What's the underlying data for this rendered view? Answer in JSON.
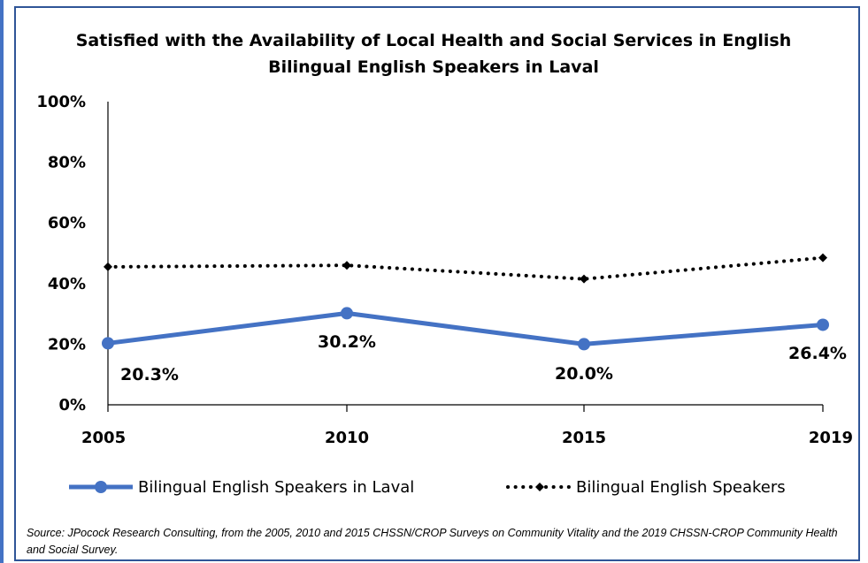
{
  "chart_data": {
    "type": "line",
    "title_lines": [
      "Satisfied with the Availability of Local Health and Social Services in English",
      "Bilingual English Speakers in Laval"
    ],
    "categories": [
      "2005",
      "2010",
      "2015",
      "2019"
    ],
    "ylim": [
      0,
      100
    ],
    "y_ticks": [
      "0%",
      "20%",
      "40%",
      "60%",
      "80%",
      "100%"
    ],
    "y_tick_values": [
      0,
      20,
      40,
      60,
      80,
      100
    ],
    "grid": false,
    "legend_position": "bottom",
    "series": [
      {
        "name": "Bilingual English Speakers in Laval",
        "values": [
          20.3,
          30.2,
          20.0,
          26.4
        ],
        "data_labels": [
          "20.3%",
          "30.2%",
          "20.0%",
          "26.4%"
        ],
        "color": "#4472c4",
        "style": "solid",
        "marker": "circle"
      },
      {
        "name": "Bilingual English Speakers",
        "values": [
          45.5,
          46.0,
          41.5,
          48.5
        ],
        "color": "#000000",
        "style": "dotted",
        "marker": "diamond"
      }
    ]
  },
  "source_text": "Source: JPocock Research Consulting, from the 2005, 2010  and 2015  CHSSN/CROP Surveys on Community Vitality and the 2019  CHSSN-CROP Community Health and Social Survey."
}
